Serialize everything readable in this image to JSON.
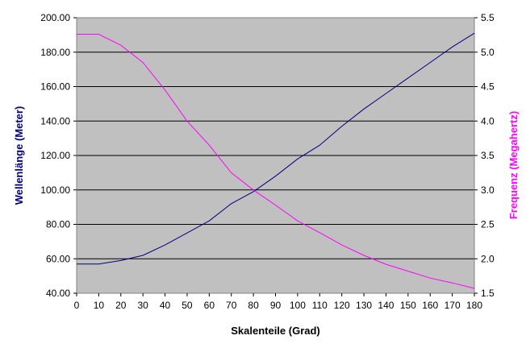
{
  "chart_data": {
    "type": "line",
    "xlabel": "Skalenteile (Grad)",
    "ylabel_left": "Wellenlänge (Meter)",
    "ylabel_right": "Frequenz (Megahertz)",
    "xlim": [
      0,
      180
    ],
    "ylim_left": [
      40,
      200
    ],
    "ylim_right": [
      1.5,
      5.5
    ],
    "x_ticks": [
      "0",
      "10",
      "20",
      "30",
      "40",
      "50",
      "60",
      "70",
      "80",
      "90",
      "100",
      "110",
      "120",
      "130",
      "140",
      "150",
      "160",
      "170",
      "180"
    ],
    "y_left_ticks": [
      "40.00",
      "60.00",
      "80.00",
      "100.00",
      "120.00",
      "140.00",
      "160.00",
      "180.00",
      "200.00"
    ],
    "y_right_ticks": [
      "1.5",
      "2.0",
      "2.5",
      "3.0",
      "3.5",
      "4.0",
      "4.5",
      "5.0",
      "5.5"
    ],
    "grid": true,
    "plot_background": "#c0c0c0",
    "left_axis_color": "#000080",
    "right_axis_color": "#ff00ff",
    "series": [
      {
        "axis": "left",
        "color": "#000080",
        "x": [
          0,
          10,
          20,
          30,
          40,
          50,
          60,
          70,
          80,
          90,
          100,
          110,
          120,
          130,
          140,
          150,
          160,
          170,
          180
        ],
        "values": [
          57,
          57,
          59,
          62,
          68,
          75,
          82,
          92,
          99,
          108,
          118,
          126,
          137,
          147,
          156,
          165,
          174,
          183,
          191
        ]
      },
      {
        "axis": "right",
        "color": "#ff00ff",
        "x": [
          0,
          10,
          20,
          30,
          40,
          50,
          60,
          70,
          80,
          90,
          100,
          110,
          120,
          130,
          140,
          150,
          160,
          170,
          180
        ],
        "values": [
          5.26,
          5.26,
          5.1,
          4.85,
          4.45,
          4.0,
          3.65,
          3.25,
          3.0,
          2.78,
          2.55,
          2.38,
          2.2,
          2.05,
          1.92,
          1.82,
          1.72,
          1.65,
          1.57
        ]
      }
    ]
  }
}
